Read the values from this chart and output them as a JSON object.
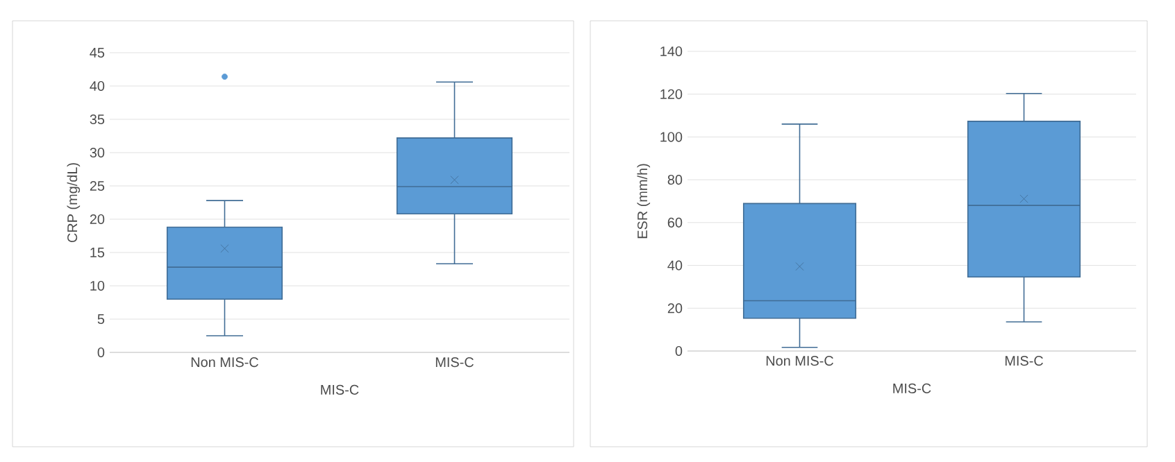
{
  "chart_data": [
    {
      "type": "box",
      "categories": [
        "Non MIS-C",
        "MIS-C"
      ],
      "xlabel": "MIS-C",
      "ylabel": "CRP (mg/dL)",
      "color": "#5b9bd5",
      "ylim": [
        0,
        45
      ],
      "yticks": [
        0,
        5,
        10,
        15,
        20,
        25,
        30,
        35,
        40,
        45
      ],
      "grid": "y",
      "boxes": [
        {
          "low": 2.5,
          "q1": 8.0,
          "median": 12.8,
          "q3": 18.8,
          "high": 22.8,
          "mean": 15.6,
          "outliers": [
            41.4
          ]
        },
        {
          "low": 13.3,
          "q1": 20.8,
          "median": 24.9,
          "q3": 32.2,
          "high": 40.6,
          "mean": 25.9
        }
      ]
    },
    {
      "type": "box",
      "categories": [
        "Non MIS-C",
        "MIS-C"
      ],
      "xlabel": "MIS-C",
      "ylabel": "ESR (mm/h)",
      "color": "#5b9bd5",
      "ylim": [
        0,
        140
      ],
      "yticks": [
        0,
        20,
        40,
        60,
        80,
        100,
        120,
        140
      ],
      "grid": "y",
      "boxes": [
        {
          "low": 1.7,
          "q1": 15.3,
          "median": 23.5,
          "q3": 68.9,
          "high": 106,
          "mean": 39.5
        },
        {
          "low": 13.6,
          "q1": 34.6,
          "median": 68.0,
          "q3": 107.3,
          "high": 120.3,
          "mean": 71.1
        }
      ]
    }
  ]
}
